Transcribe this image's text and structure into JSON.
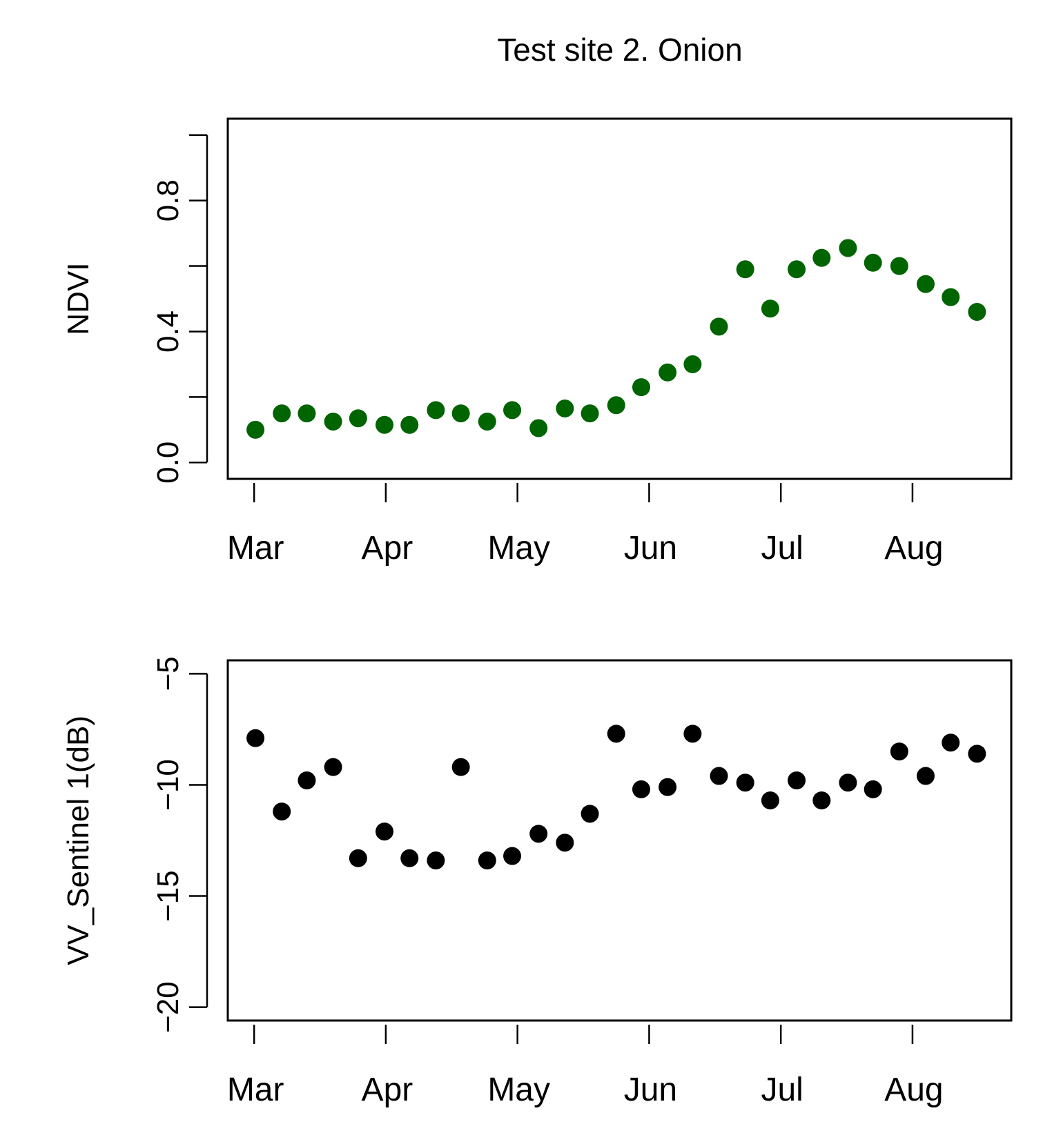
{
  "title": "Test site 2. Onion",
  "colors": {
    "ndvi_points": "#006400",
    "vv_points": "#000000",
    "axis": "#000000"
  },
  "chart_data": [
    {
      "type": "scatter",
      "ylabel": "NDVI",
      "ylim": [
        -0.05,
        1.05
      ],
      "yticks": [
        0.0,
        0.4,
        0.8
      ],
      "yticks_unlabeled": [
        0.2,
        0.6,
        1.0
      ],
      "xlim": [
        -0.2,
        5.75
      ],
      "xticks": [
        0,
        1,
        2,
        3,
        4,
        5
      ],
      "xticklabels": [
        "Mar",
        "Apr",
        "May",
        "Jun",
        "Jul",
        "Aug"
      ],
      "points": [
        {
          "x": 0.01,
          "y": 0.1
        },
        {
          "x": 0.21,
          "y": 0.15
        },
        {
          "x": 0.4,
          "y": 0.15
        },
        {
          "x": 0.6,
          "y": 0.125
        },
        {
          "x": 0.79,
          "y": 0.135
        },
        {
          "x": 0.99,
          "y": 0.115
        },
        {
          "x": 1.18,
          "y": 0.115
        },
        {
          "x": 1.38,
          "y": 0.16
        },
        {
          "x": 1.57,
          "y": 0.15
        },
        {
          "x": 1.77,
          "y": 0.125
        },
        {
          "x": 1.96,
          "y": 0.16
        },
        {
          "x": 2.16,
          "y": 0.105
        },
        {
          "x": 2.36,
          "y": 0.165
        },
        {
          "x": 2.55,
          "y": 0.15
        },
        {
          "x": 2.75,
          "y": 0.175
        },
        {
          "x": 2.94,
          "y": 0.23
        },
        {
          "x": 3.14,
          "y": 0.275
        },
        {
          "x": 3.33,
          "y": 0.3
        },
        {
          "x": 3.53,
          "y": 0.415
        },
        {
          "x": 3.73,
          "y": 0.59
        },
        {
          "x": 3.92,
          "y": 0.47
        },
        {
          "x": 4.12,
          "y": 0.59
        },
        {
          "x": 4.31,
          "y": 0.625
        },
        {
          "x": 4.51,
          "y": 0.655
        },
        {
          "x": 4.7,
          "y": 0.61
        },
        {
          "x": 4.9,
          "y": 0.6
        },
        {
          "x": 5.1,
          "y": 0.545
        },
        {
          "x": 5.29,
          "y": 0.505
        },
        {
          "x": 5.49,
          "y": 0.46
        }
      ]
    },
    {
      "type": "scatter",
      "ylabel": "VV_Sentinel 1(dB)",
      "ylim": [
        -20.6,
        -4.4
      ],
      "yticks": [
        -5,
        -10,
        -15,
        -20
      ],
      "yticklabels": [
        "−5",
        "−10",
        "−15",
        "−20"
      ],
      "xlim": [
        -0.2,
        5.75
      ],
      "xticks": [
        0,
        1,
        2,
        3,
        4,
        5
      ],
      "xticklabels": [
        "Mar",
        "Apr",
        "May",
        "Jun",
        "Jul",
        "Aug"
      ],
      "points": [
        {
          "x": 0.01,
          "y": -7.9
        },
        {
          "x": 0.21,
          "y": -11.2
        },
        {
          "x": 0.4,
          "y": -9.8
        },
        {
          "x": 0.6,
          "y": -9.2
        },
        {
          "x": 0.79,
          "y": -13.3
        },
        {
          "x": 0.99,
          "y": -12.1
        },
        {
          "x": 1.18,
          "y": -13.3
        },
        {
          "x": 1.38,
          "y": -13.4
        },
        {
          "x": 1.57,
          "y": -9.2
        },
        {
          "x": 1.77,
          "y": -13.4
        },
        {
          "x": 1.96,
          "y": -13.2
        },
        {
          "x": 2.16,
          "y": -12.2
        },
        {
          "x": 2.36,
          "y": -12.6
        },
        {
          "x": 2.55,
          "y": -11.3
        },
        {
          "x": 2.75,
          "y": -7.7
        },
        {
          "x": 2.94,
          "y": -10.2
        },
        {
          "x": 3.14,
          "y": -10.1
        },
        {
          "x": 3.33,
          "y": -7.7
        },
        {
          "x": 3.53,
          "y": -9.6
        },
        {
          "x": 3.73,
          "y": -9.9
        },
        {
          "x": 3.92,
          "y": -10.7
        },
        {
          "x": 4.12,
          "y": -9.8
        },
        {
          "x": 4.31,
          "y": -10.7
        },
        {
          "x": 4.51,
          "y": -9.9
        },
        {
          "x": 4.7,
          "y": -10.2
        },
        {
          "x": 4.9,
          "y": -8.5
        },
        {
          "x": 5.1,
          "y": -9.6
        },
        {
          "x": 5.29,
          "y": -8.1
        },
        {
          "x": 5.49,
          "y": -8.6
        }
      ]
    }
  ]
}
